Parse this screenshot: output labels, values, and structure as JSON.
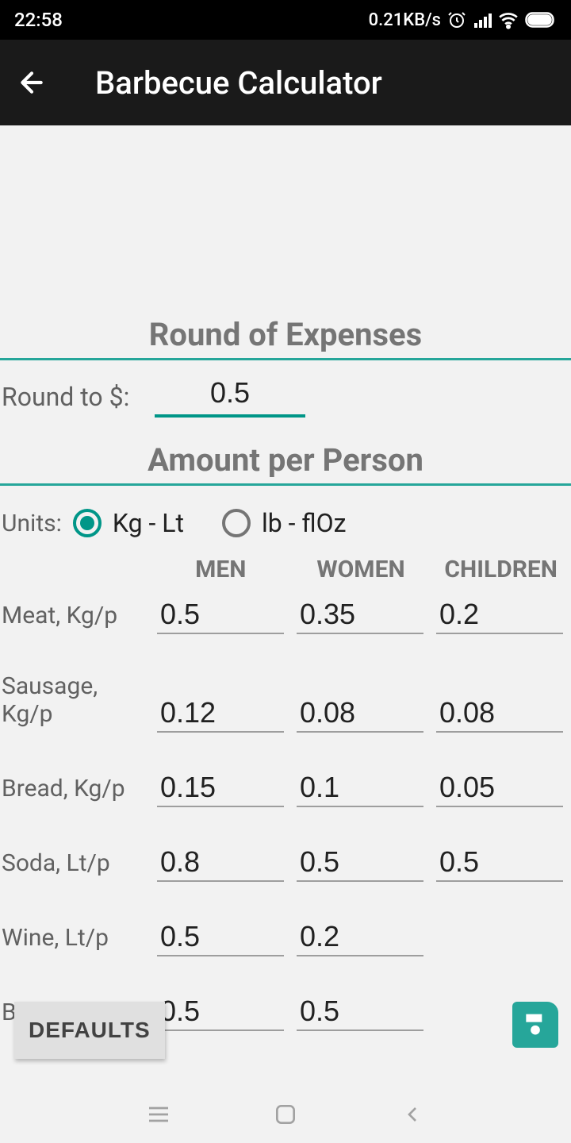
{
  "statusBar": {
    "time": "22:58",
    "dataRate": "0.21KB/s"
  },
  "appBar": {
    "title": "Barbecue Calculator"
  },
  "sections": {
    "round": {
      "title": "Round of Expenses",
      "label": "Round to $:",
      "value": "0.5"
    },
    "amount": {
      "title": "Amount per Person",
      "unitsLabel": "Units:",
      "unit1": "Kg - Lt",
      "unit2": "lb - flOz",
      "headers": {
        "men": "MEN",
        "women": "WOMEN",
        "children": "CHILDREN"
      },
      "rows": [
        {
          "label": "Meat, Kg/p",
          "men": "0.5",
          "women": "0.35",
          "children": "0.2"
        },
        {
          "label": "Sausage, Kg/p",
          "men": "0.12",
          "women": "0.08",
          "children": "0.08"
        },
        {
          "label": "Bread, Kg/p",
          "men": "0.15",
          "women": "0.1",
          "children": "0.05"
        },
        {
          "label": "Soda, Lt/p",
          "men": "0.8",
          "women": "0.5",
          "children": "0.5"
        },
        {
          "label": "Wine, Lt/p",
          "men": "0.5",
          "women": "0.2",
          "children": ""
        },
        {
          "label": "Beer, Lt/p",
          "men": "0.5",
          "women": "0.5",
          "children": ""
        }
      ]
    }
  },
  "buttons": {
    "defaults": "DEFAULTS"
  },
  "colors": {
    "accent": "#009688",
    "accentLight": "#26a69a"
  }
}
